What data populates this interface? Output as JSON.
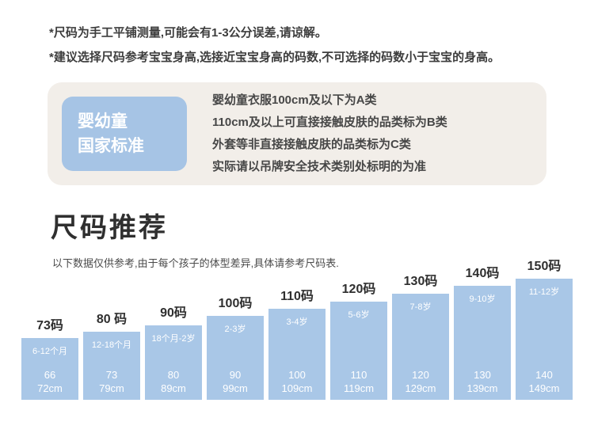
{
  "notes": {
    "line1": "*尺码为手工平铺测量,可能会有1-3公分误差,请谅解。",
    "line2": "*建议选择尺码参考宝宝身高,选接近宝宝身高的码数,不可选择的码数小于宝宝的身高。"
  },
  "standard": {
    "badge": {
      "line1": "婴幼童",
      "line2": "国家标准"
    },
    "lines": {
      "l1": "婴幼童衣服100cm及以下为A类",
      "l2": "110cm及以上可直接接触皮肤的品类标为B类",
      "l3": "外套等非直接接触皮肤的品类标为C类",
      "l4": "实际请以吊牌安全技术类别处标明的为准"
    }
  },
  "section": {
    "title": "尺码推荐",
    "subtitle": "以下数据仅供参考,由于每个孩子的体型差异,具体请参考尺码表."
  },
  "chart_data": {
    "type": "bar",
    "title": "尺码推荐",
    "bar_color": "#a9c7e7",
    "legend": "none",
    "categories": [
      "73码",
      "80 码",
      "90码",
      "100码",
      "110码",
      "120码",
      "130码",
      "140码",
      "150码"
    ],
    "bars": [
      {
        "size": "73码",
        "age": "6-12个月",
        "min": "66",
        "max": "72cm"
      },
      {
        "size": "80 码",
        "age": "12-18个月",
        "min": "73",
        "max": "79cm"
      },
      {
        "size": "90码",
        "age": "18个月-2岁",
        "min": "80",
        "max": "89cm"
      },
      {
        "size": "100码",
        "age": "2-3岁",
        "min": "90",
        "max": "99cm"
      },
      {
        "size": "110码",
        "age": "3-4岁",
        "min": "100",
        "max": "109cm"
      },
      {
        "size": "120码",
        "age": "5-6岁",
        "min": "110",
        "max": "119cm"
      },
      {
        "size": "130码",
        "age": "7-8岁",
        "min": "120",
        "max": "129cm"
      },
      {
        "size": "140码",
        "age": "9-10岁",
        "min": "130",
        "max": "139cm"
      },
      {
        "size": "150码",
        "age": "11-12岁",
        "min": "140",
        "max": "149cm"
      }
    ]
  }
}
